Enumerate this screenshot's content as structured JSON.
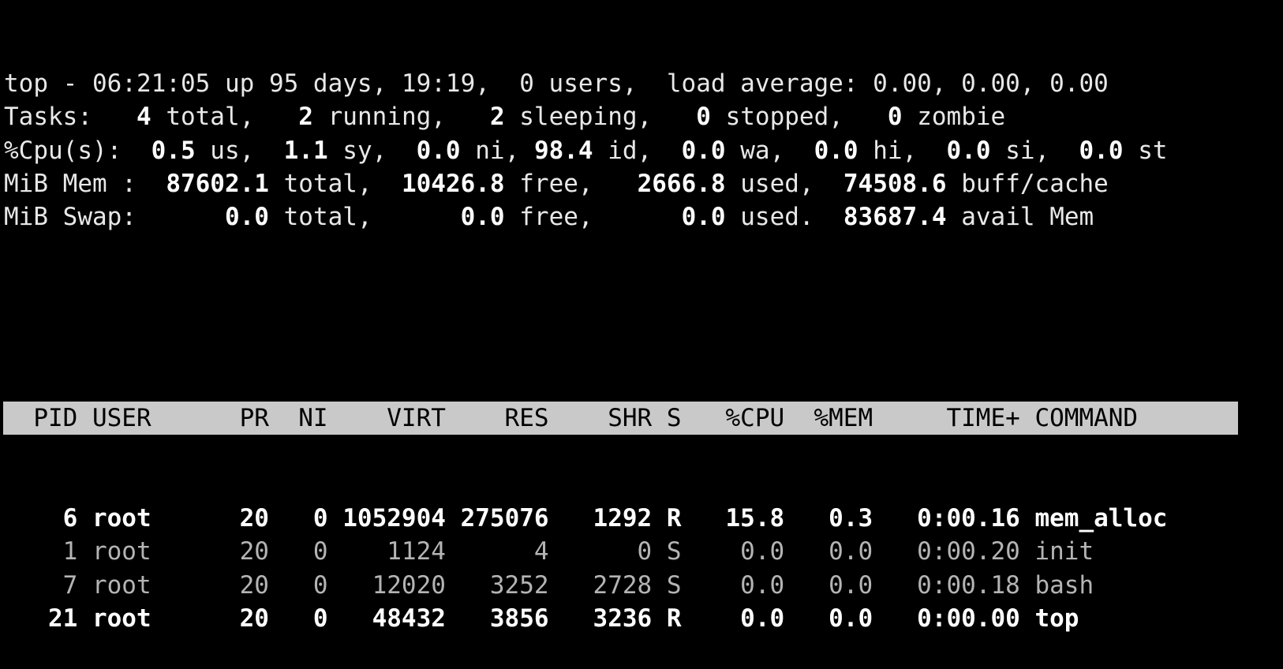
{
  "summary": [
    [
      {
        "t": "top - 06:21:05 up 95 days, 19:19,  0 users,  load average: 0.00, 0.00, 0.00"
      }
    ],
    [
      {
        "t": "Tasks:   "
      },
      {
        "t": "4",
        "b": true
      },
      {
        "t": " total,   "
      },
      {
        "t": "2",
        "b": true
      },
      {
        "t": " running,   "
      },
      {
        "t": "2",
        "b": true
      },
      {
        "t": " sleeping,   "
      },
      {
        "t": "0",
        "b": true
      },
      {
        "t": " stopped,   "
      },
      {
        "t": "0",
        "b": true
      },
      {
        "t": " zombie"
      }
    ],
    [
      {
        "t": "%Cpu(s):  "
      },
      {
        "t": "0.5",
        "b": true
      },
      {
        "t": " us,  "
      },
      {
        "t": "1.1",
        "b": true
      },
      {
        "t": " sy,  "
      },
      {
        "t": "0.0",
        "b": true
      },
      {
        "t": " ni, "
      },
      {
        "t": "98.4",
        "b": true
      },
      {
        "t": " id,  "
      },
      {
        "t": "0.0",
        "b": true
      },
      {
        "t": " wa,  "
      },
      {
        "t": "0.0",
        "b": true
      },
      {
        "t": " hi,  "
      },
      {
        "t": "0.0",
        "b": true
      },
      {
        "t": " si,  "
      },
      {
        "t": "0.0",
        "b": true
      },
      {
        "t": " st"
      }
    ],
    [
      {
        "t": "MiB Mem :  "
      },
      {
        "t": "87602.1",
        "b": true
      },
      {
        "t": " total,  "
      },
      {
        "t": "10426.8",
        "b": true
      },
      {
        "t": " free,   "
      },
      {
        "t": "2666.8",
        "b": true
      },
      {
        "t": " used,  "
      },
      {
        "t": "74508.6",
        "b": true
      },
      {
        "t": " buff/cache"
      }
    ],
    [
      {
        "t": "MiB Swap:      "
      },
      {
        "t": "0.0",
        "b": true
      },
      {
        "t": " total,      "
      },
      {
        "t": "0.0",
        "b": true
      },
      {
        "t": " free,      "
      },
      {
        "t": "0.0",
        "b": true
      },
      {
        "t": " used.  "
      },
      {
        "t": "83687.4",
        "b": true
      },
      {
        "t": " avail Mem"
      }
    ]
  ],
  "columns": [
    "PID",
    "USER",
    "PR",
    "NI",
    "VIRT",
    "RES",
    "SHR",
    "S",
    "%CPU",
    "%MEM",
    "TIME+",
    "COMMAND"
  ],
  "processes": [
    {
      "pid": "6",
      "user": "root",
      "pr": "20",
      "ni": "0",
      "virt": "1052904",
      "res": "275076",
      "shr": "1292",
      "s": "R",
      "cpu": "15.8",
      "mem": "0.3",
      "time": "0:00.16",
      "command": "mem_alloc"
    },
    {
      "pid": "1",
      "user": "root",
      "pr": "20",
      "ni": "0",
      "virt": "1124",
      "res": "4",
      "shr": "0",
      "s": "S",
      "cpu": "0.0",
      "mem": "0.0",
      "time": "0:00.20",
      "command": "init"
    },
    {
      "pid": "7",
      "user": "root",
      "pr": "20",
      "ni": "0",
      "virt": "12020",
      "res": "3252",
      "shr": "2728",
      "s": "S",
      "cpu": "0.0",
      "mem": "0.0",
      "time": "0:00.18",
      "command": "bash"
    },
    {
      "pid": "21",
      "user": "root",
      "pr": "20",
      "ni": "0",
      "virt": "48432",
      "res": "3856",
      "shr": "3236",
      "s": "R",
      "cpu": "0.0",
      "mem": "0.0",
      "time": "0:00.00",
      "command": "top"
    }
  ]
}
